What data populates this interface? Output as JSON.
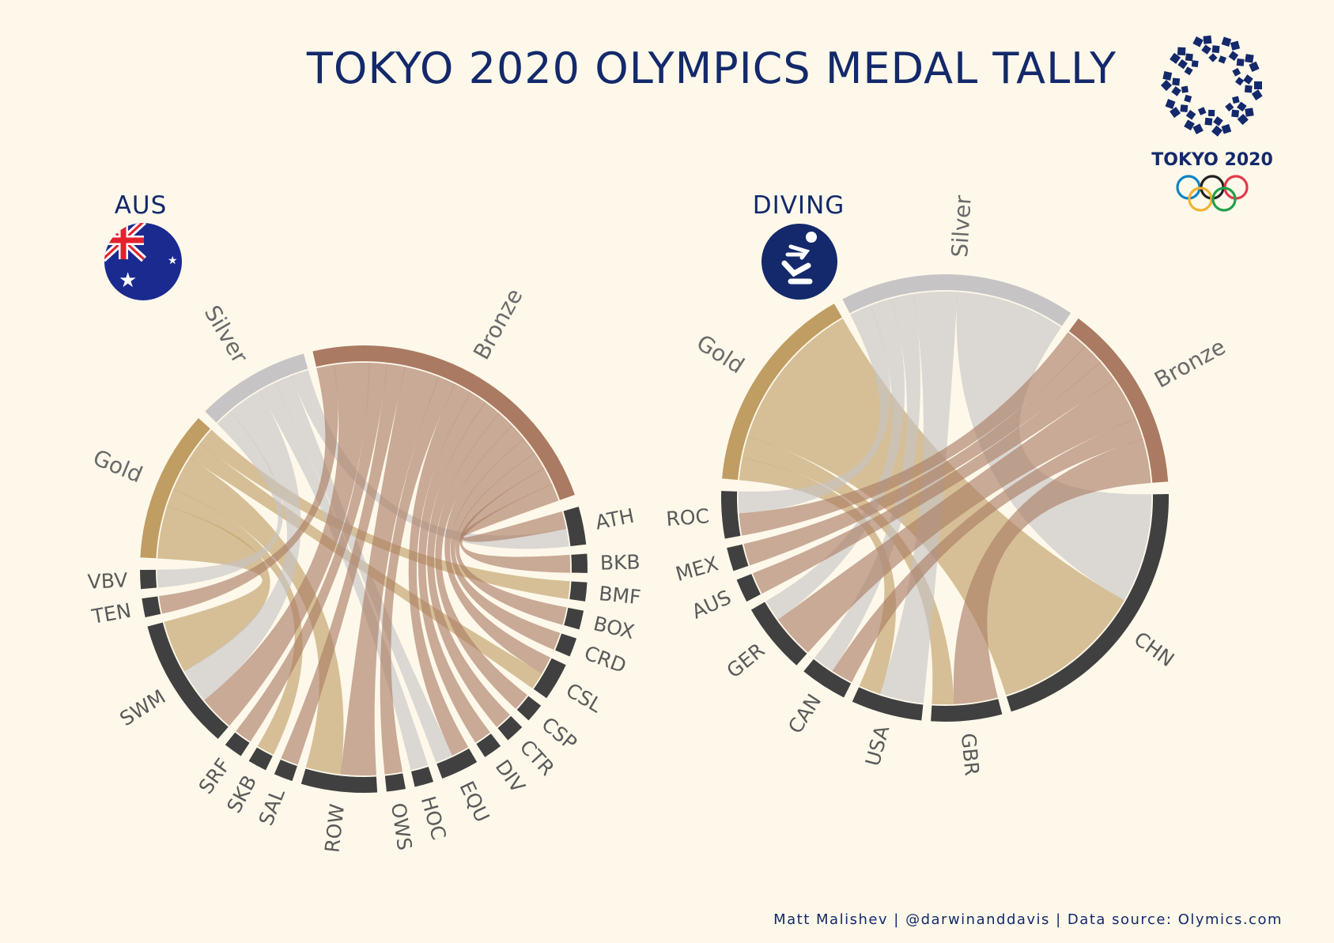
{
  "title": "TOKYO 2020 OLYMPICS MEDAL TALLY",
  "credit": "Matt Malishev | @darwinanddavis | Data source: Olymics.com",
  "logo": {
    "text": "TOKYO 2020",
    "icon": "tokyo-2020-emblem-icon"
  },
  "colors": {
    "Gold": "#bf9d63",
    "Silver": "#c6c4c5",
    "Bronze": "#aa7a63",
    "category": "#404040",
    "background": "#fdf8ea",
    "title": "#13296b"
  },
  "chart_data": [
    {
      "type": "chord",
      "title": "AUS",
      "icon": "australia-flag-icon",
      "medals": [
        "Gold",
        "Silver",
        "Bronze"
      ],
      "categories": [
        "ATH",
        "BKB",
        "BMF",
        "BOX",
        "CRD",
        "CSL",
        "CSP",
        "CTR",
        "DIV",
        "EQU",
        "HOC",
        "OWS",
        "ROW",
        "SAL",
        "SKB",
        "SRF",
        "SWM",
        "TEN",
        "VBV"
      ],
      "links": [
        {
          "category": "ATH",
          "medal": "Silver",
          "value": 1
        },
        {
          "category": "ATH",
          "medal": "Bronze",
          "value": 1
        },
        {
          "category": "BKB",
          "medal": "Bronze",
          "value": 1
        },
        {
          "category": "BMF",
          "medal": "Gold",
          "value": 1
        },
        {
          "category": "BOX",
          "medal": "Bronze",
          "value": 1
        },
        {
          "category": "CRD",
          "medal": "Bronze",
          "value": 1
        },
        {
          "category": "CSL",
          "medal": "Gold",
          "value": 1
        },
        {
          "category": "CSL",
          "medal": "Bronze",
          "value": 1
        },
        {
          "category": "CSP",
          "medal": "Bronze",
          "value": 1
        },
        {
          "category": "CTR",
          "medal": "Bronze",
          "value": 1
        },
        {
          "category": "DIV",
          "medal": "Bronze",
          "value": 1
        },
        {
          "category": "EQU",
          "medal": "Silver",
          "value": 1
        },
        {
          "category": "EQU",
          "medal": "Bronze",
          "value": 1
        },
        {
          "category": "HOC",
          "medal": "Silver",
          "value": 1
        },
        {
          "category": "OWS",
          "medal": "Bronze",
          "value": 1
        },
        {
          "category": "ROW",
          "medal": "Gold",
          "value": 2
        },
        {
          "category": "ROW",
          "medal": "Bronze",
          "value": 2
        },
        {
          "category": "SAL",
          "medal": "Bronze",
          "value": 1
        },
        {
          "category": "SKB",
          "medal": "Gold",
          "value": 1
        },
        {
          "category": "SRF",
          "medal": "Bronze",
          "value": 1
        },
        {
          "category": "SWM",
          "medal": "Gold",
          "value": 3
        },
        {
          "category": "SWM",
          "medal": "Silver",
          "value": 2
        },
        {
          "category": "SWM",
          "medal": "Bronze",
          "value": 2
        },
        {
          "category": "TEN",
          "medal": "Bronze",
          "value": 1
        },
        {
          "category": "VBV",
          "medal": "Silver",
          "value": 1
        }
      ]
    },
    {
      "type": "chord",
      "title": "DIVING",
      "icon": "diving-pictogram-icon",
      "medals": [
        "Gold",
        "Silver",
        "Bronze"
      ],
      "categories": [
        "CHN",
        "GBR",
        "USA",
        "CAN",
        "GER",
        "AUS",
        "MEX",
        "ROC"
      ],
      "links": [
        {
          "category": "CHN",
          "medal": "Gold",
          "value": 7
        },
        {
          "category": "CHN",
          "medal": "Silver",
          "value": 5
        },
        {
          "category": "GBR",
          "medal": "Gold",
          "value": 1
        },
        {
          "category": "GBR",
          "medal": "Bronze",
          "value": 2
        },
        {
          "category": "USA",
          "medal": "Gold",
          "value": 1
        },
        {
          "category": "USA",
          "medal": "Silver",
          "value": 2
        },
        {
          "category": "CAN",
          "medal": "Silver",
          "value": 1
        },
        {
          "category": "CAN",
          "medal": "Bronze",
          "value": 1
        },
        {
          "category": "GER",
          "medal": "Silver",
          "value": 1
        },
        {
          "category": "GER",
          "medal": "Bronze",
          "value": 2
        },
        {
          "category": "AUS",
          "medal": "Bronze",
          "value": 1
        },
        {
          "category": "MEX",
          "medal": "Bronze",
          "value": 1
        },
        {
          "category": "ROC",
          "medal": "Silver",
          "value": 1
        },
        {
          "category": "ROC",
          "medal": "Bronze",
          "value": 1
        }
      ]
    }
  ]
}
